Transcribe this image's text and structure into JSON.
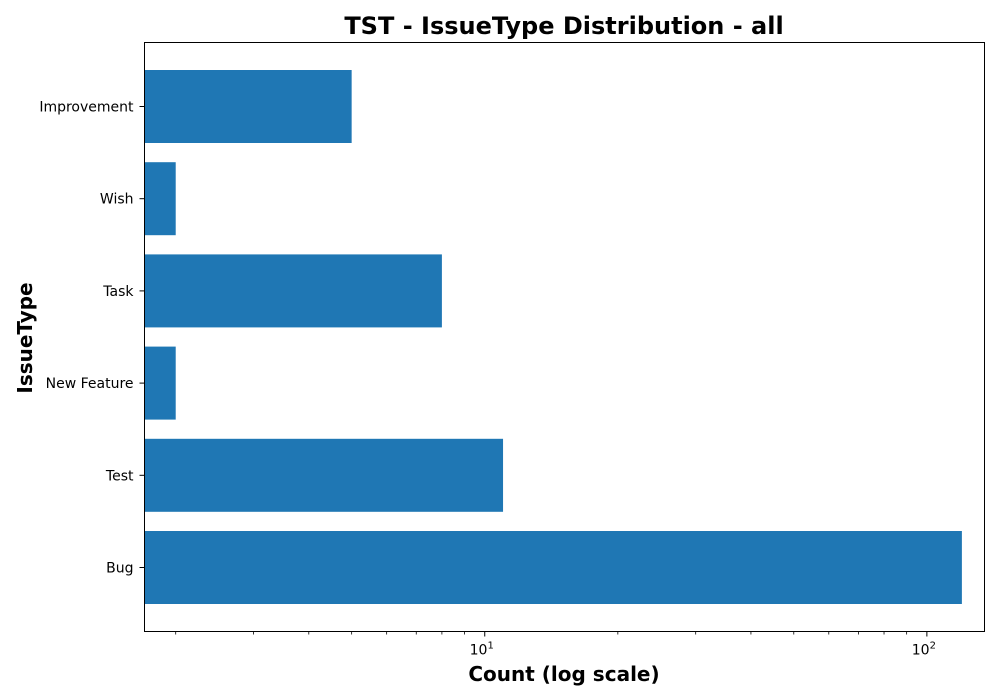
{
  "chart_data": {
    "type": "bar",
    "orientation": "horizontal",
    "title": "TST - IssueType Distribution - all",
    "xlabel": "Count (log scale)",
    "ylabel": "IssueType",
    "x_scale": "log",
    "xlim": [
      1.7,
      135
    ],
    "categories": [
      "Bug",
      "Test",
      "New Feature",
      "Task",
      "Wish",
      "Improvement"
    ],
    "values": [
      120,
      11,
      2,
      8,
      2,
      5
    ],
    "x_major_ticks": [
      {
        "base": "10",
        "exp": "1",
        "value": 10
      },
      {
        "base": "10",
        "exp": "2",
        "value": 100
      }
    ],
    "bar_color": "#1f77b4",
    "grid": false,
    "legend": "none"
  }
}
